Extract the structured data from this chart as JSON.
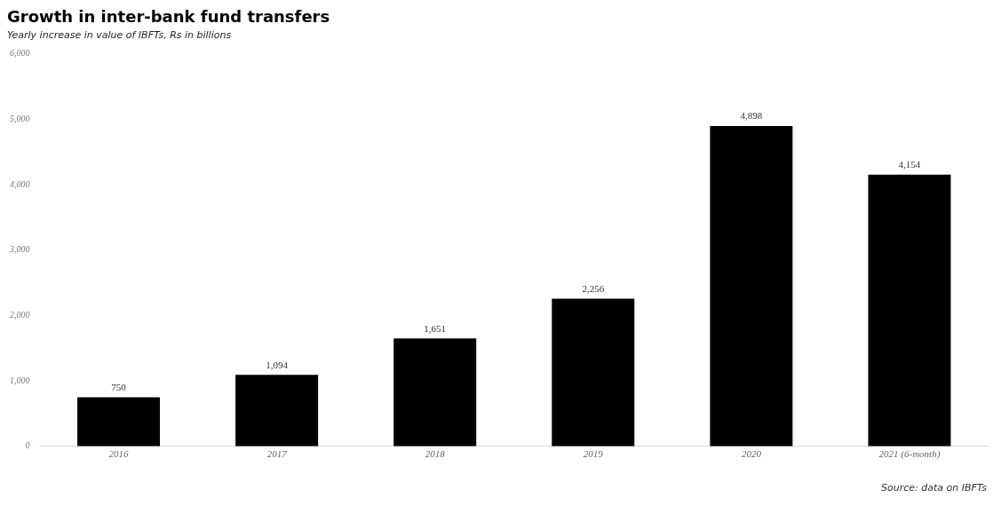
{
  "chart_data": {
    "type": "bar",
    "title": "Growth in inter-bank fund transfers",
    "subtitle": "Yearly increase in value of IBFTs, Rs in billions",
    "categories": [
      "2016",
      "2017",
      "2018",
      "2019",
      "2020",
      "2021 (6-month)"
    ],
    "values": [
      750,
      1094,
      1651,
      2256,
      4898,
      4154
    ],
    "color": "#000000",
    "value_labels": [
      "750",
      "1,094",
      "1,651",
      "2,256",
      "4,898",
      "4,154"
    ],
    "ylim": [
      0,
      6000
    ],
    "yticks": [
      {
        "value": 0,
        "label": "0"
      },
      {
        "value": 1000,
        "label": "1,000"
      },
      {
        "value": 2000,
        "label": "2,000"
      },
      {
        "value": 3000,
        "label": "3,000"
      },
      {
        "value": 4000,
        "label": "4,000"
      },
      {
        "value": 5000,
        "label": "5,000"
      },
      {
        "value": 6000,
        "label": "6,000"
      }
    ],
    "annotations": [
      "Source: data on IBFTs"
    ],
    "grid": false,
    "legend": false
  }
}
